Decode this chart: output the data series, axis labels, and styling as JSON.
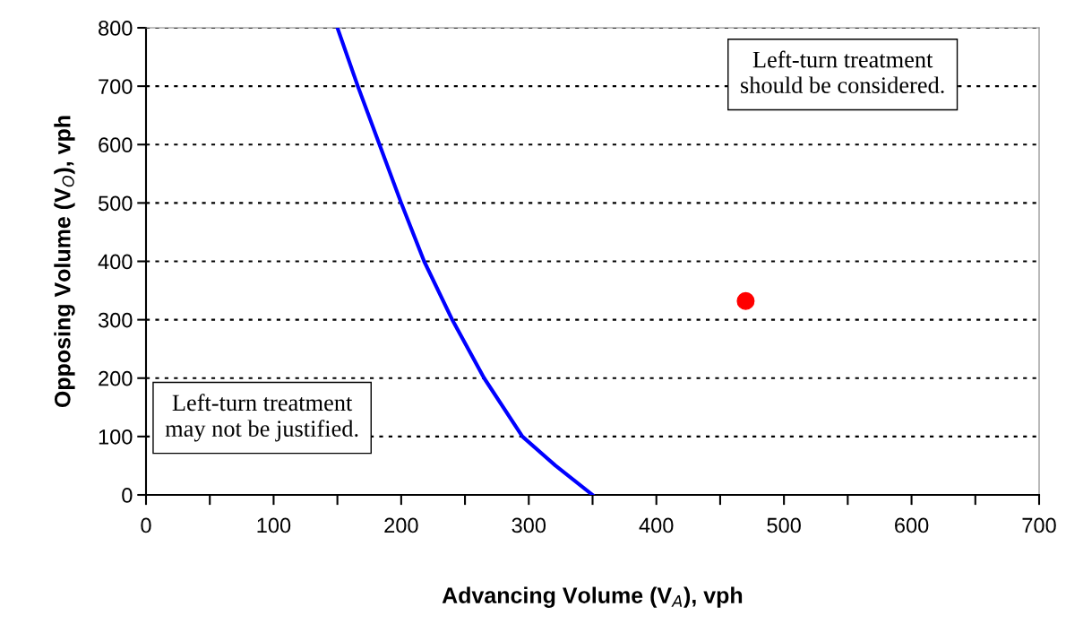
{
  "chart_data": {
    "type": "line",
    "xlabel": "Advancing Volume (V$_{A}$), vph",
    "ylabel": "Opposing Volume (V$_{O}$), vph",
    "series": [
      {
        "color": "#0000ff",
        "x": [
          150,
          166,
          183,
          200,
          218,
          240,
          265,
          295,
          321,
          350
        ],
        "values": [
          800,
          700,
          600,
          500,
          400,
          300,
          200,
          100,
          50,
          0
        ]
      },
      {
        "type": "scatter",
        "color": "#ff0000",
        "x": [
          470
        ],
        "values": [
          332
        ],
        "marker": "circle"
      }
    ],
    "xlim": [
      0,
      700
    ],
    "ylim": [
      0,
      800
    ],
    "xticks": [
      0,
      {
        "value": 50,
        "label": null
      },
      100,
      {
        "value": 150,
        "label": null
      },
      200,
      {
        "value": 250,
        "label": null
      },
      300,
      {
        "value": 350,
        "label": null
      },
      400,
      {
        "value": 450,
        "label": null
      },
      500,
      {
        "value": 550,
        "label": null
      },
      600,
      {
        "value": 650,
        "label": null
      },
      700
    ],
    "yticks": [
      0,
      100,
      200,
      300,
      400,
      500,
      600,
      700,
      800
    ],
    "grid": "y",
    "legend": false,
    "annotations": [
      "Left-turn treatment\nshould be considered.",
      "Left-turn treatment\nmay not be justified."
    ]
  }
}
